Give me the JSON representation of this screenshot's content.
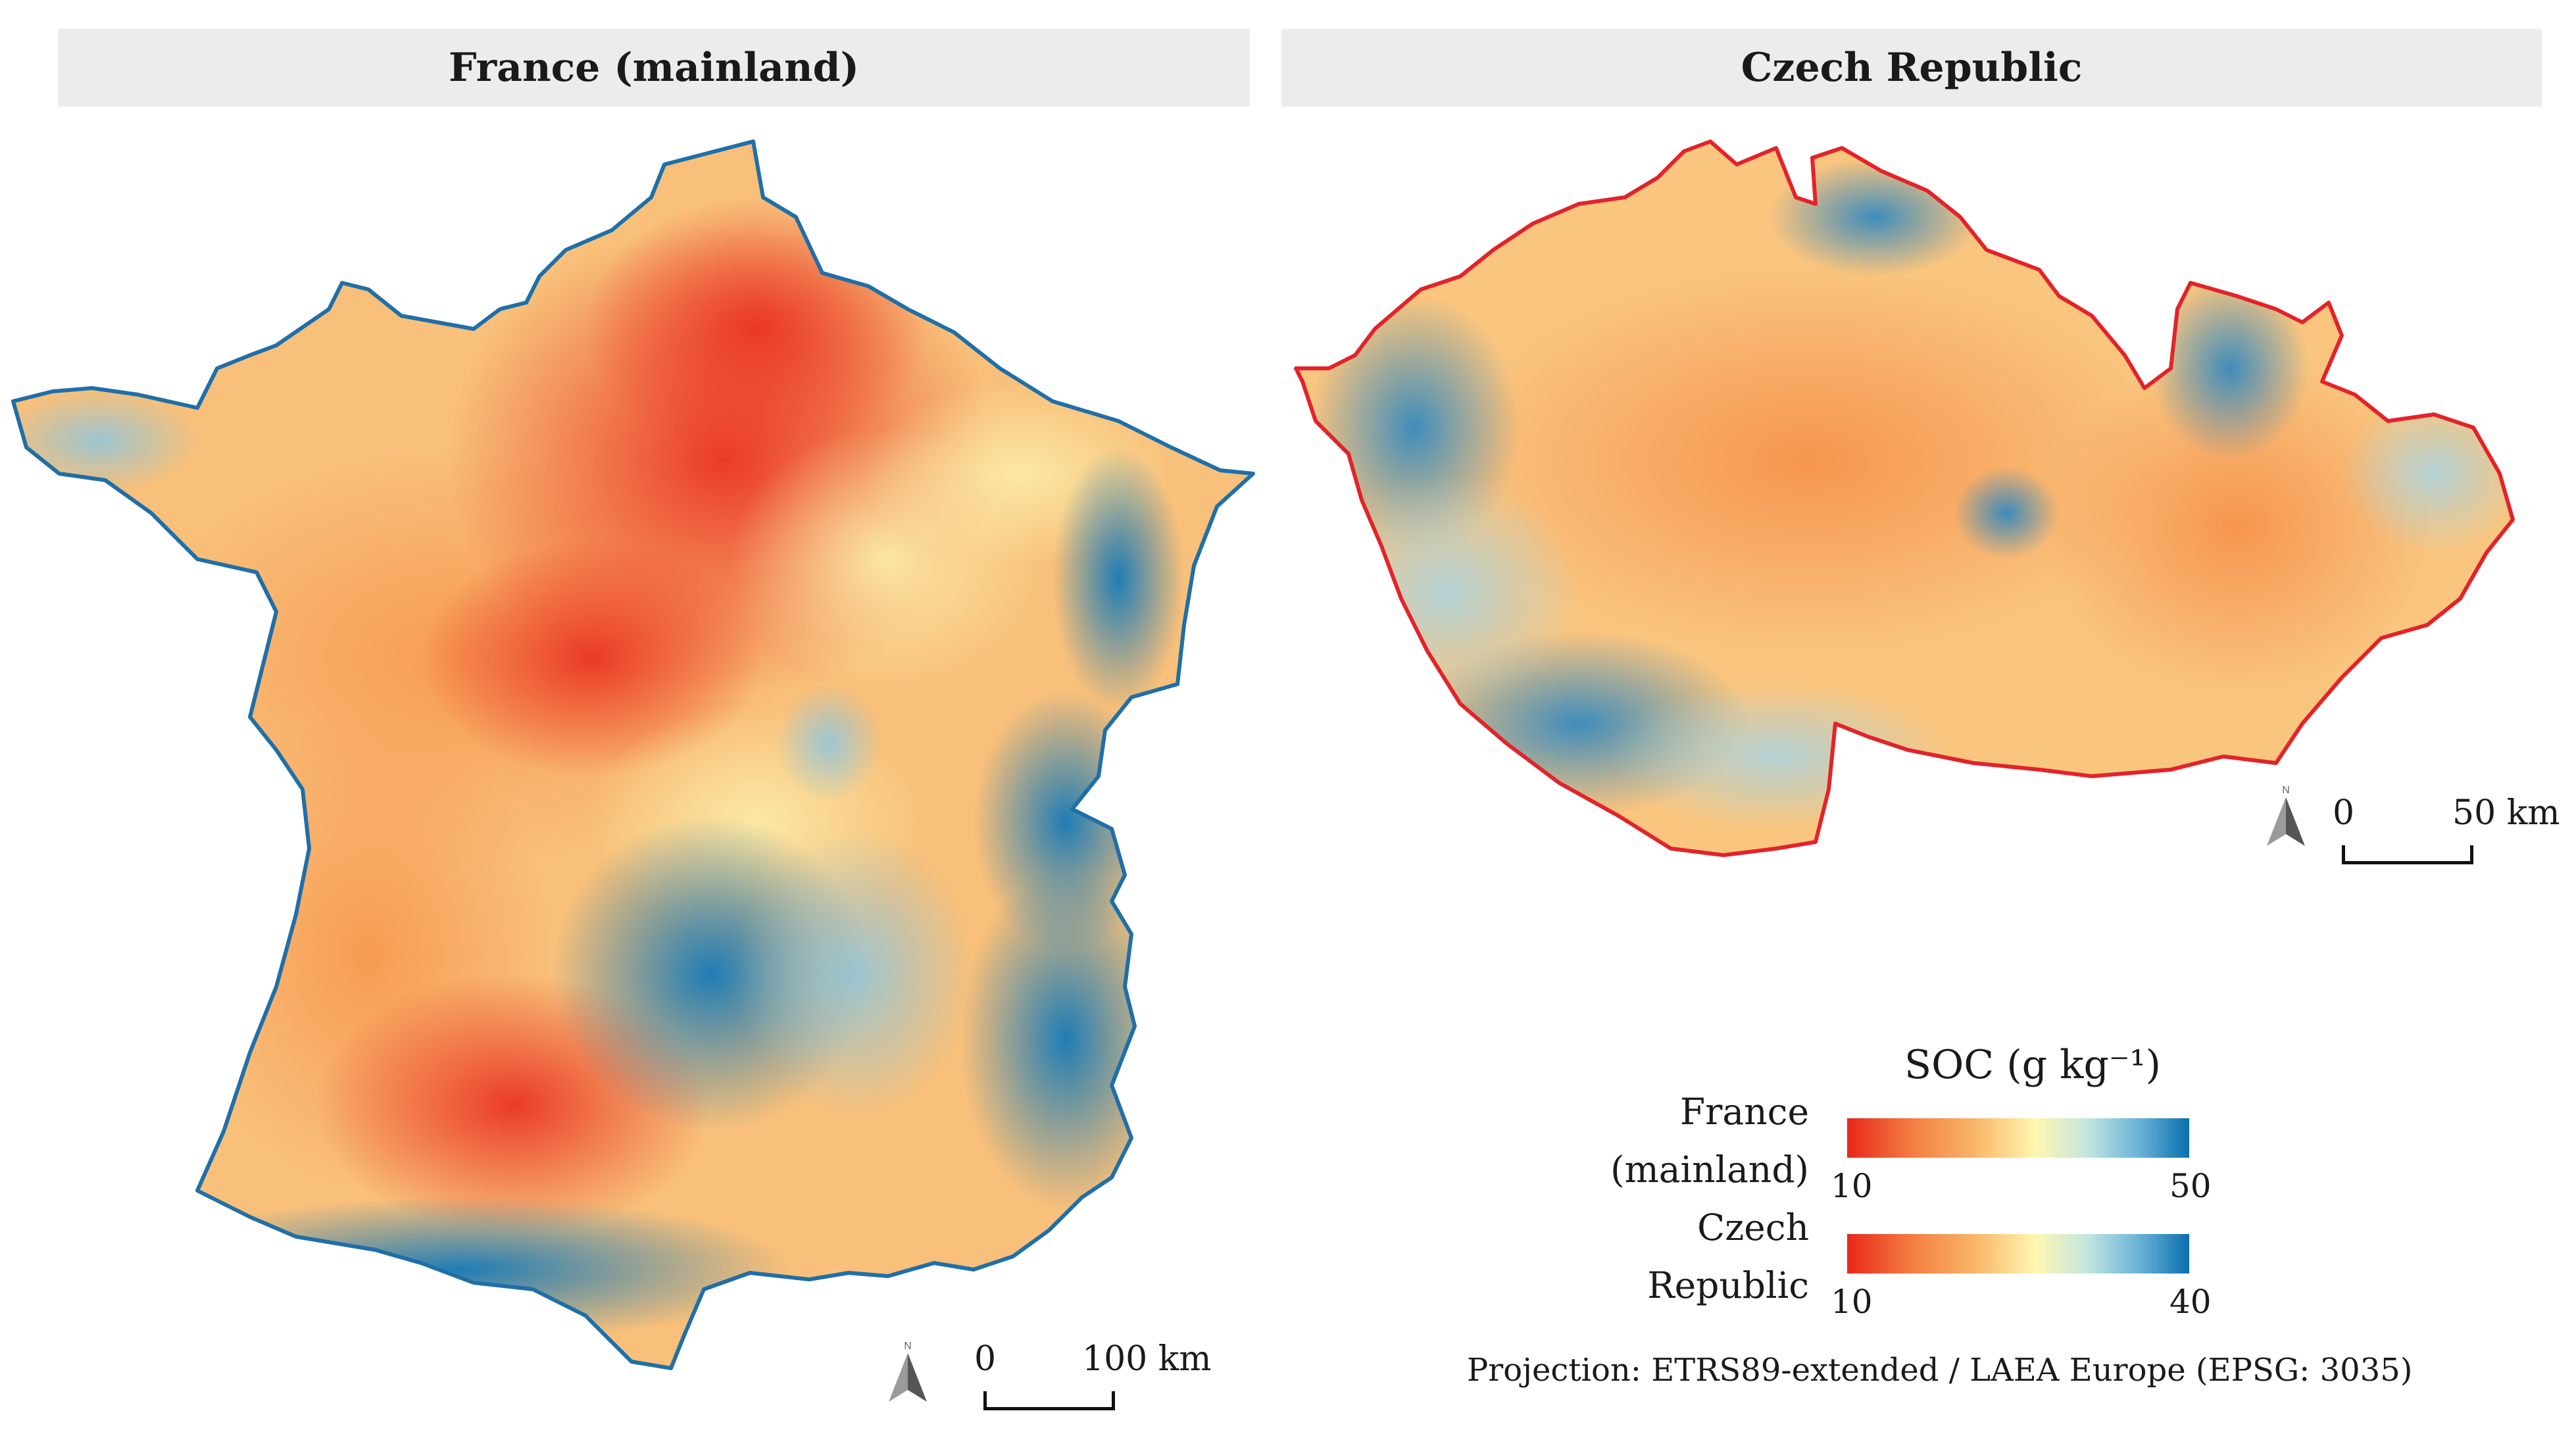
{
  "panels": {
    "france": {
      "title": "France (mainland)",
      "scale": {
        "start": "0",
        "end": "100 km"
      },
      "outline_color": "#1f6fa8"
    },
    "czech": {
      "title": "Czech Republic",
      "scale": {
        "start": "0",
        "end": "50 km"
      },
      "outline_color": "#e3232a"
    }
  },
  "north_arrow": {
    "letter": "N",
    "icon": "north-arrow-icon"
  },
  "legend": {
    "title": "SOC (g kg⁻¹)",
    "france": {
      "label_line1": "France",
      "label_line2": "(mainland)",
      "min": "10",
      "max": "50"
    },
    "czech": {
      "label_line1": "Czech",
      "label_line2": "Republic",
      "min": "10",
      "max": "40"
    },
    "colors": [
      "#e8271b",
      "#f9b86a",
      "#fff6b0",
      "#6cb4d9",
      "#0a6fae"
    ]
  },
  "projection": "Projection: ETRS89-extended / LAEA Europe (EPSG: 3035)"
}
